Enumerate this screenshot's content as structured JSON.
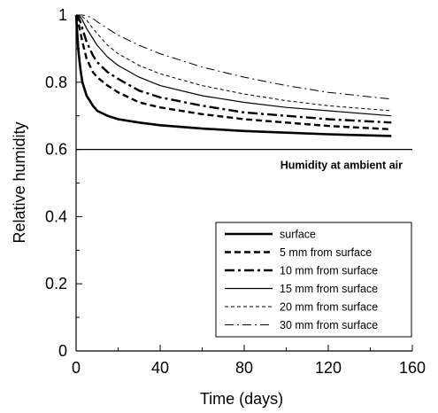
{
  "chart_data": {
    "type": "line",
    "xlabel": "Time (days)",
    "ylabel": "Relative humidity",
    "xlim": [
      0,
      160
    ],
    "ylim": [
      0,
      1
    ],
    "x_ticks": [
      0,
      40,
      80,
      120,
      160
    ],
    "x_tick_labels": [
      "0",
      "40",
      "80",
      "120",
      "160"
    ],
    "y_ticks": [
      0,
      0.2,
      0.4,
      0.6,
      0.8,
      1
    ],
    "y_tick_labels": [
      "0",
      "0.2",
      "0.4",
      "0.6",
      "0.8",
      "1"
    ],
    "grid": false,
    "legend_position": "bottom-right",
    "series": [
      {
        "name": "surface",
        "style": "solid-thick",
        "x": [
          0,
          1,
          2,
          3,
          5,
          8,
          10,
          15,
          20,
          30,
          40,
          60,
          80,
          100,
          120,
          150
        ],
        "y": [
          1.0,
          0.9,
          0.84,
          0.8,
          0.76,
          0.73,
          0.715,
          0.7,
          0.69,
          0.68,
          0.672,
          0.662,
          0.655,
          0.65,
          0.645,
          0.64
        ]
      },
      {
        "name": "5 mm from surface",
        "style": "dashed-thick",
        "x": [
          0,
          1,
          2,
          3,
          5,
          8,
          10,
          15,
          20,
          30,
          40,
          60,
          80,
          100,
          120,
          150
        ],
        "y": [
          1.0,
          0.98,
          0.95,
          0.92,
          0.87,
          0.83,
          0.815,
          0.79,
          0.77,
          0.74,
          0.725,
          0.705,
          0.69,
          0.68,
          0.67,
          0.66
        ]
      },
      {
        "name": "10 mm from surface",
        "style": "dashdot-thick",
        "x": [
          0,
          1,
          2,
          3,
          5,
          8,
          10,
          15,
          20,
          30,
          40,
          60,
          80,
          100,
          120,
          150
        ],
        "y": [
          1.0,
          0.995,
          0.98,
          0.96,
          0.92,
          0.88,
          0.86,
          0.83,
          0.81,
          0.775,
          0.755,
          0.73,
          0.71,
          0.7,
          0.69,
          0.68
        ]
      },
      {
        "name": "15 mm from surface",
        "style": "solid-thin",
        "x": [
          0,
          1,
          2,
          3,
          5,
          8,
          10,
          15,
          20,
          30,
          40,
          60,
          80,
          100,
          120,
          150
        ],
        "y": [
          1.0,
          1.0,
          0.995,
          0.985,
          0.96,
          0.93,
          0.91,
          0.875,
          0.85,
          0.815,
          0.79,
          0.76,
          0.74,
          0.725,
          0.715,
          0.7
        ]
      },
      {
        "name": "20 mm from surface",
        "style": "dashed-thin",
        "x": [
          0,
          1,
          2,
          3,
          5,
          8,
          10,
          15,
          20,
          30,
          40,
          60,
          80,
          100,
          120,
          150
        ],
        "y": [
          1.0,
          1.0,
          1.0,
          0.995,
          0.985,
          0.96,
          0.945,
          0.91,
          0.885,
          0.85,
          0.825,
          0.79,
          0.765,
          0.745,
          0.73,
          0.715
        ]
      },
      {
        "name": "30 mm from surface",
        "style": "dashdot-thin",
        "x": [
          0,
          1,
          2,
          3,
          5,
          8,
          10,
          15,
          20,
          30,
          40,
          60,
          80,
          100,
          120,
          150
        ],
        "y": [
          1.0,
          1.0,
          1.0,
          1.0,
          0.998,
          0.99,
          0.98,
          0.96,
          0.94,
          0.91,
          0.885,
          0.845,
          0.815,
          0.79,
          0.77,
          0.75
        ]
      }
    ],
    "reference_line": {
      "y": 0.6,
      "label": "Humidity at ambient air"
    }
  }
}
